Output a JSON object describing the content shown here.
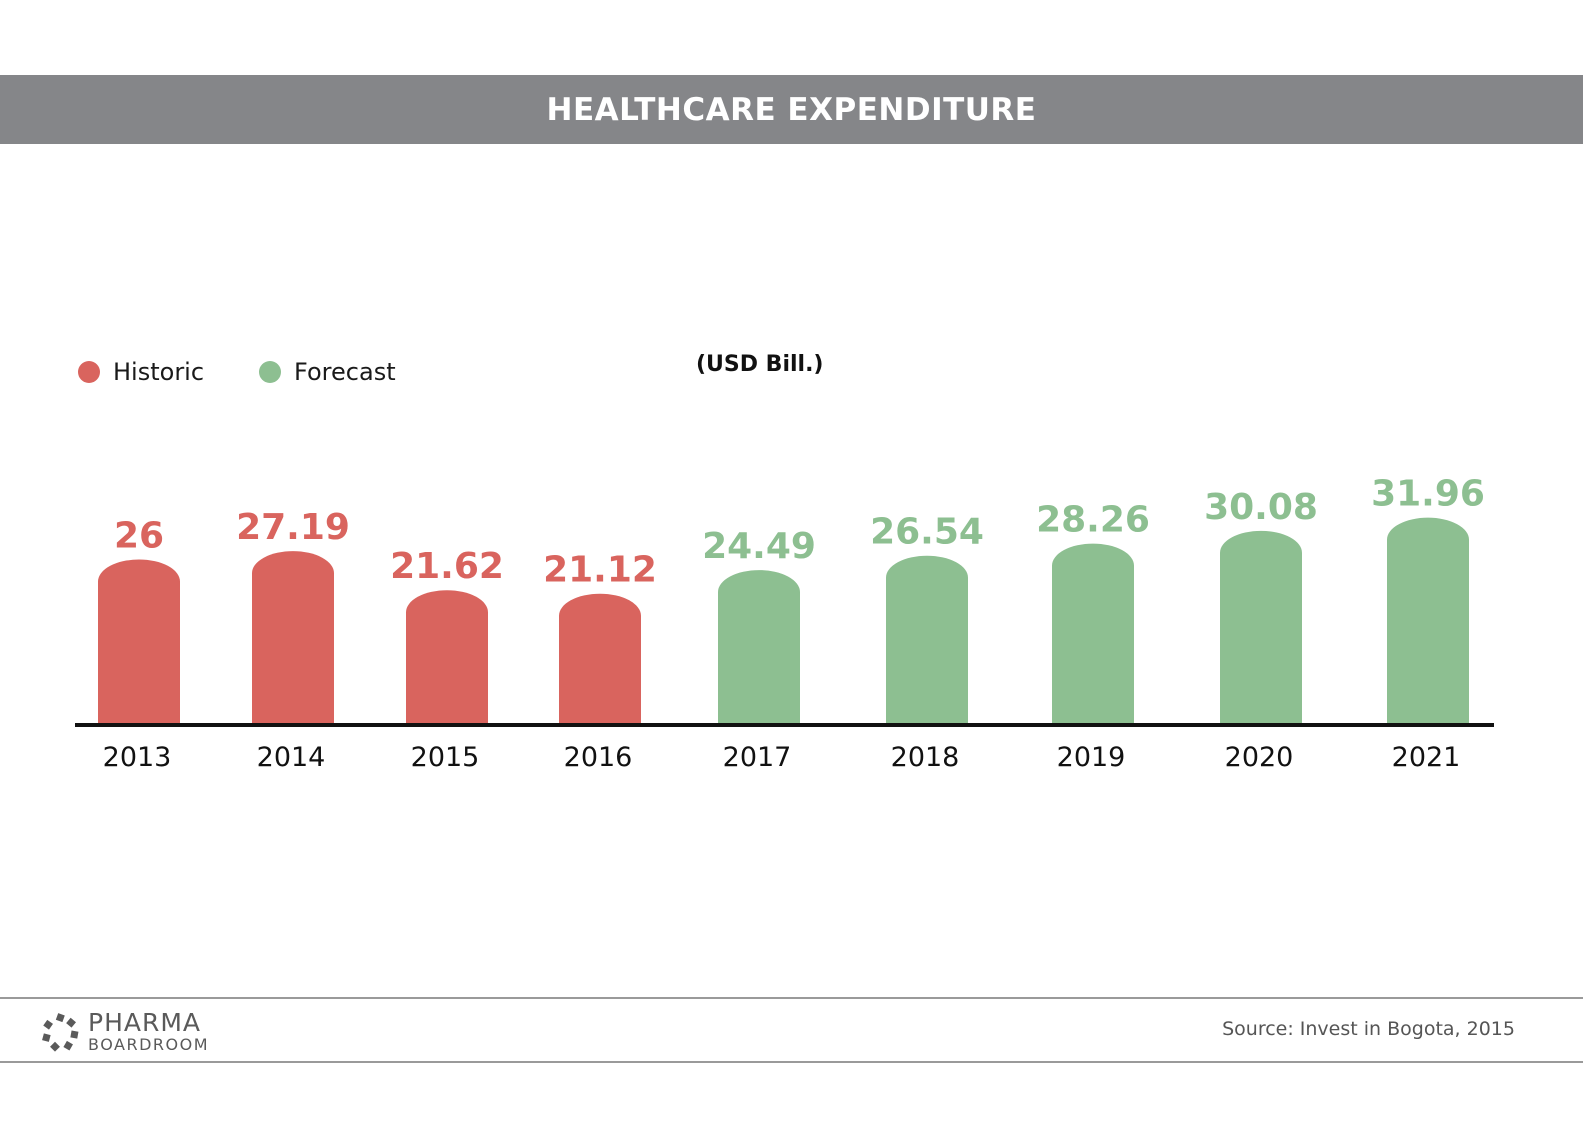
{
  "header": {
    "title": "HEALTHCARE EXPENDITURE"
  },
  "legend": [
    {
      "label": "Historic",
      "color": "#d9645e"
    },
    {
      "label": "Forecast",
      "color": "#8dbf91"
    }
  ],
  "unit_label": "(USD Bill.)",
  "chart_data": {
    "type": "bar",
    "title": "HEALTHCARE EXPENDITURE",
    "ylabel": "(USD Bill.)",
    "categories": [
      "2013",
      "2014",
      "2015",
      "2016",
      "2017",
      "2018",
      "2019",
      "2020",
      "2021"
    ],
    "values": [
      26,
      27.19,
      21.62,
      21.12,
      24.49,
      26.54,
      28.26,
      30.08,
      31.96
    ],
    "value_labels": [
      "26",
      "27.19",
      "21.62",
      "21.12",
      "24.49",
      "26.54",
      "28.26",
      "30.08",
      "31.96"
    ],
    "series_type": [
      "Historic",
      "Historic",
      "Historic",
      "Historic",
      "Forecast",
      "Forecast",
      "Forecast",
      "Forecast",
      "Forecast"
    ],
    "legend_position": "top-left",
    "grid": false
  },
  "footer": {
    "logo_line1": "PHARMA",
    "logo_line2": "BOARDROOM",
    "source": "Source: Invest in Bogota, 2015"
  }
}
